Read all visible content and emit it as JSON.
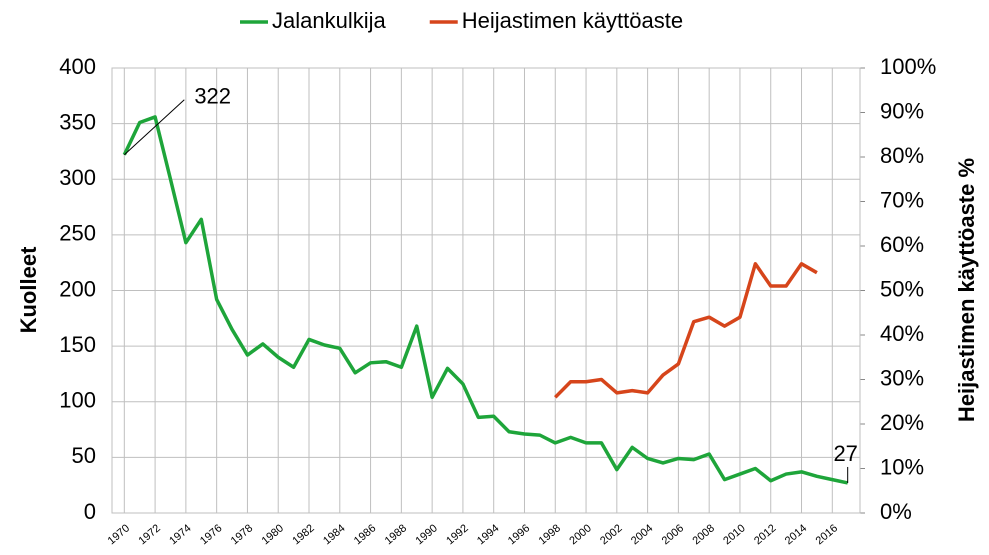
{
  "chart_data": {
    "type": "line",
    "ylabel": "Kuolleet",
    "y2label": "Heijastimen käyttöaste %",
    "x": [
      1970,
      1971,
      1972,
      1973,
      1974,
      1975,
      1976,
      1977,
      1978,
      1979,
      1980,
      1981,
      1982,
      1983,
      1984,
      1985,
      1986,
      1987,
      1988,
      1989,
      1990,
      1991,
      1992,
      1993,
      1994,
      1995,
      1996,
      1997,
      1998,
      1999,
      2000,
      2001,
      2002,
      2003,
      2004,
      2005,
      2006,
      2007,
      2008,
      2009,
      2010,
      2011,
      2012,
      2013,
      2014,
      2015,
      2016,
      2017
    ],
    "series": [
      {
        "name": "Jalankulkija",
        "color": "#1ea53a",
        "axis": "y",
        "values": [
          322,
          351,
          356,
          300,
          243,
          264,
          192,
          165,
          142,
          152,
          140,
          131,
          156,
          151,
          148,
          126,
          135,
          136,
          131,
          168,
          104,
          130,
          116,
          86,
          87,
          73,
          71,
          70,
          63,
          68,
          63,
          63,
          39,
          59,
          49,
          45,
          49,
          48,
          53,
          30,
          35,
          40,
          29,
          35,
          37,
          33,
          30,
          27
        ]
      },
      {
        "name": "Heijastimen käyttöaste",
        "color": "#d6451b",
        "axis": "y2",
        "values": [
          null,
          null,
          null,
          null,
          null,
          null,
          null,
          null,
          null,
          null,
          null,
          null,
          null,
          null,
          null,
          null,
          null,
          null,
          null,
          null,
          null,
          null,
          null,
          null,
          null,
          null,
          null,
          null,
          26,
          29.5,
          29.5,
          30,
          27,
          27.5,
          27,
          31,
          33.5,
          43,
          44,
          42,
          44,
          56,
          51,
          51,
          56,
          54,
          null,
          null
        ]
      }
    ],
    "annotations": [
      {
        "label": "322",
        "x": 1970,
        "y": 322
      },
      {
        "label": "27",
        "x": 2017,
        "y": 27
      }
    ],
    "xlim": [
      1969.2,
      2017.8
    ],
    "xticks": [
      1970,
      1972,
      1974,
      1976,
      1978,
      1980,
      1982,
      1984,
      1986,
      1988,
      1990,
      1992,
      1994,
      1996,
      1998,
      2000,
      2002,
      2004,
      2006,
      2008,
      2010,
      2012,
      2014,
      2016
    ],
    "ylim": [
      0,
      400
    ],
    "yticks": [
      0,
      50,
      100,
      150,
      200,
      250,
      300,
      350,
      400
    ],
    "y2lim": [
      0,
      100
    ],
    "y2ticks": [
      {
        "value": 0,
        "label": "0%"
      },
      {
        "value": 10,
        "label": "10%"
      },
      {
        "value": 20,
        "label": "20%"
      },
      {
        "value": 30,
        "label": "30%"
      },
      {
        "value": 40,
        "label": "40%"
      },
      {
        "value": 50,
        "label": "50%"
      },
      {
        "value": 60,
        "label": "60%"
      },
      {
        "value": 70,
        "label": "70%"
      },
      {
        "value": 80,
        "label": "80%"
      },
      {
        "value": 90,
        "label": "90%"
      },
      {
        "value": 100,
        "label": "100%"
      }
    ],
    "grid": true,
    "legend": "top"
  }
}
